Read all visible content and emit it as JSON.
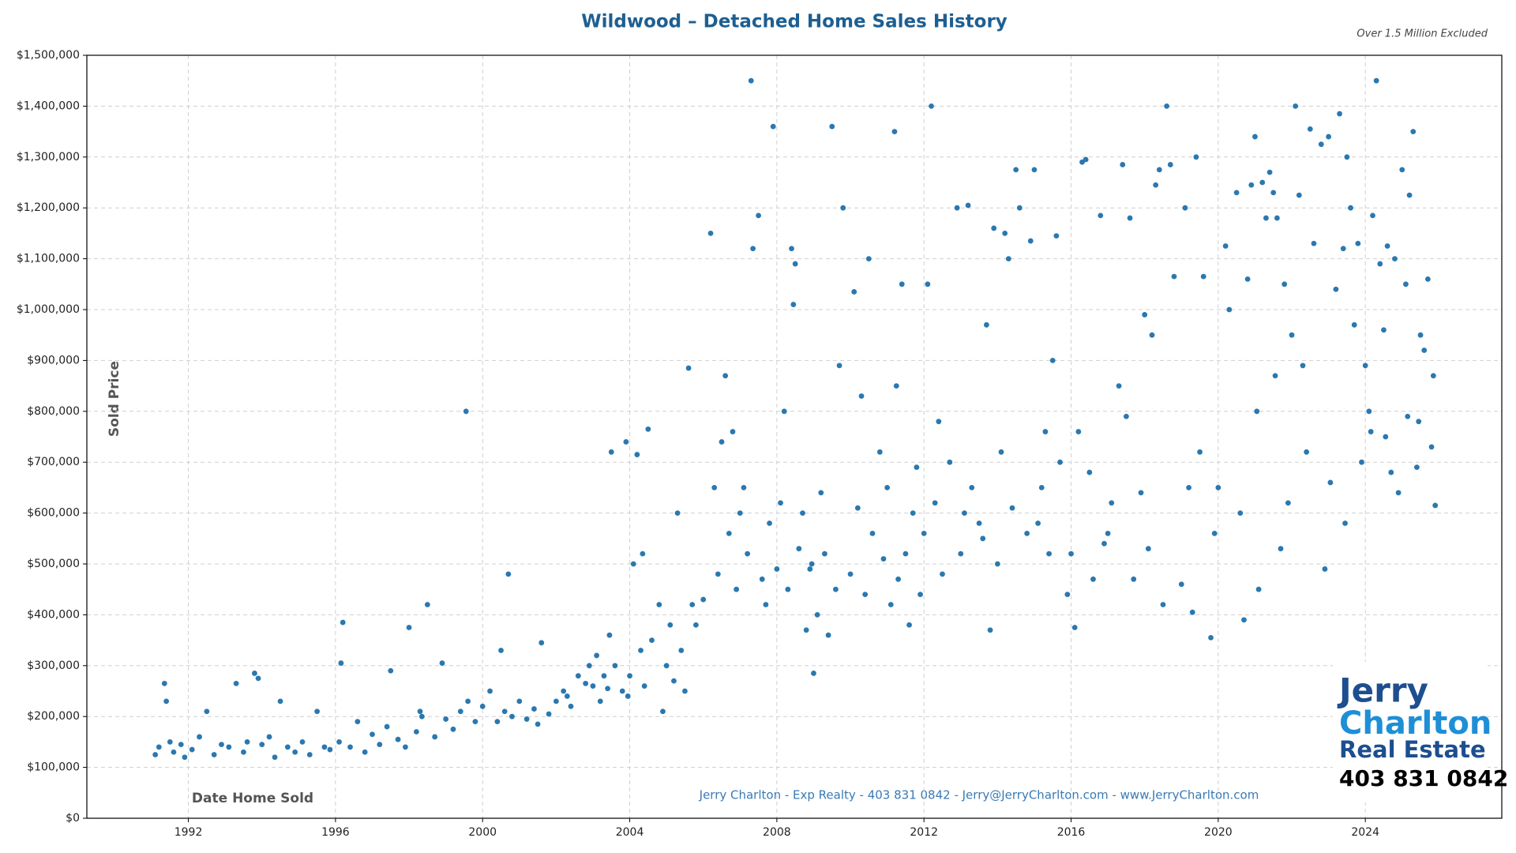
{
  "chart_data": {
    "type": "scatter",
    "title": "Wildwood – Detached Home Sales History",
    "subtitle": "Over 1.5 Million Excluded",
    "x_label": "Date Home Sold",
    "y_label": "Sold Price",
    "footer": "Jerry Charlton - Exp Realty - 403 831 0842 - Jerry@JerryCharlton.com - www.JerryCharlton.com",
    "color": "#2a78b0",
    "grid": true,
    "xlim": [
      1989.24,
      2027.71
    ],
    "xticks": [
      1992,
      1996,
      2000,
      2004,
      2008,
      2012,
      2016,
      2020,
      2024
    ],
    "ylim": [
      0,
      1500000
    ],
    "yticks": [
      {
        "value": 0,
        "label": "$0"
      },
      {
        "value": 100000,
        "label": "$100,000"
      },
      {
        "value": 200000,
        "label": "$200,000"
      },
      {
        "value": 300000,
        "label": "$300,000"
      },
      {
        "value": 400000,
        "label": "$400,000"
      },
      {
        "value": 500000,
        "label": "$500,000"
      },
      {
        "value": 600000,
        "label": "$600,000"
      },
      {
        "value": 700000,
        "label": "$700,000"
      },
      {
        "value": 800000,
        "label": "$800,000"
      },
      {
        "value": 900000,
        "label": "$900,000"
      },
      {
        "value": 1000000,
        "label": "$1,000,000"
      },
      {
        "value": 1100000,
        "label": "$1,100,000"
      },
      {
        "value": 1200000,
        "label": "$1,200,000"
      },
      {
        "value": 1300000,
        "label": "$1,300,000"
      },
      {
        "value": 1400000,
        "label": "$1,400,000"
      },
      {
        "value": 1500000,
        "label": "$1,500,000"
      }
    ],
    "x": [
      1991.1,
      1991.2,
      1991.35,
      1991.5,
      1991.6,
      1991.8,
      1991.9,
      1992.1,
      1992.3,
      1992.5,
      1992.7,
      1992.9,
      1993.1,
      1993.3,
      1993.5,
      1993.6,
      1993.8,
      1994.0,
      1994.2,
      1994.35,
      1994.5,
      1994.7,
      1994.9,
      1995.1,
      1995.3,
      1995.5,
      1995.7,
      1995.85,
      1991.4,
      1993.9,
      1996.1,
      1996.2,
      1996.4,
      1996.6,
      1996.8,
      1997.0,
      1997.2,
      1997.4,
      1997.5,
      1997.7,
      1997.9,
      1998.0,
      1998.2,
      1998.3,
      1998.5,
      1998.7,
      1998.9,
      1999.0,
      1999.2,
      1999.4,
      1999.6,
      1999.8,
      1996.15,
      1998.35,
      1999.55,
      2000.0,
      2000.2,
      2000.4,
      2000.6,
      2000.7,
      2000.8,
      2001.0,
      2001.2,
      2001.4,
      2001.6,
      2001.8,
      2002.0,
      2002.2,
      2002.4,
      2002.6,
      2002.8,
      2000.5,
      2001.5,
      2002.3,
      2002.9,
      2003.0,
      2003.1,
      2003.2,
      2003.3,
      2003.4,
      2003.5,
      2003.6,
      2003.8,
      2003.9,
      2004.0,
      2004.1,
      2004.2,
      2004.3,
      2004.4,
      2004.5,
      2004.6,
      2004.8,
      2004.9,
      2005.0,
      2005.1,
      2005.2,
      2005.3,
      2005.4,
      2005.5,
      2005.6,
      2005.7,
      2005.8,
      2003.45,
      2003.95,
      2004.35,
      2006.0,
      2006.2,
      2006.3,
      2006.4,
      2006.6,
      2006.7,
      2006.8,
      2006.9,
      2007.0,
      2007.2,
      2007.3,
      2007.35,
      2007.5,
      2007.6,
      2007.8,
      2007.9,
      2008.0,
      2008.1,
      2008.2,
      2008.3,
      2008.4,
      2008.45,
      2008.5,
      2008.6,
      2008.8,
      2008.9,
      2006.5,
      2007.1,
      2007.7,
      2008.7,
      2009.0,
      2009.1,
      2009.3,
      2009.4,
      2009.5,
      2009.6,
      2009.7,
      2009.8,
      2010.0,
      2010.1,
      2010.2,
      2010.4,
      2010.5,
      2010.6,
      2010.8,
      2011.0,
      2011.1,
      2011.2,
      2011.3,
      2011.4,
      2011.5,
      2011.6,
      2011.7,
      2011.8,
      2011.9,
      2008.95,
      2009.2,
      2010.3,
      2010.9,
      2011.25,
      2012.0,
      2012.1,
      2012.2,
      2012.3,
      2012.5,
      2012.7,
      2012.9,
      2013.0,
      2013.2,
      2013.3,
      2013.5,
      2013.7,
      2013.8,
      2013.9,
      2014.0,
      2014.2,
      2014.3,
      2014.4,
      2014.5,
      2014.6,
      2014.8,
      2014.9,
      2015.0,
      2015.2,
      2015.4,
      2015.5,
      2015.6,
      2015.7,
      2015.9,
      2012.4,
      2013.1,
      2013.6,
      2014.1,
      2015.1,
      2015.3,
      2016.0,
      2016.1,
      2016.3,
      2016.4,
      2016.5,
      2016.6,
      2016.8,
      2017.0,
      2017.1,
      2017.3,
      2017.4,
      2017.6,
      2017.7,
      2017.9,
      2018.0,
      2018.2,
      2018.3,
      2018.4,
      2018.5,
      2018.6,
      2018.7,
      2018.8,
      2019.0,
      2019.1,
      2019.3,
      2019.4,
      2019.6,
      2019.8,
      2019.9,
      2016.2,
      2016.9,
      2017.5,
      2018.1,
      2019.2,
      2019.5,
      2020.0,
      2020.2,
      2020.3,
      2020.5,
      2020.7,
      2020.8,
      2020.9,
      2021.0,
      2021.1,
      2021.2,
      2021.3,
      2021.4,
      2021.5,
      2021.6,
      2021.7,
      2021.8,
      2021.9,
      2022.0,
      2022.1,
      2022.2,
      2022.3,
      2022.5,
      2022.6,
      2022.8,
      2022.9,
      2023.0,
      2023.2,
      2023.3,
      2023.4,
      2023.5,
      2023.6,
      2023.7,
      2023.8,
      2023.9,
      2020.6,
      2021.05,
      2021.55,
      2022.4,
      2023.05,
      2023.45,
      2024.0,
      2024.1,
      2024.2,
      2024.3,
      2024.4,
      2024.5,
      2024.6,
      2024.7,
      2024.8,
      2024.9,
      2025.0,
      2025.1,
      2025.2,
      2025.3,
      2025.4,
      2025.5,
      2025.6,
      2025.7,
      2025.8,
      2025.9,
      2024.15,
      2024.55,
      2025.15,
      2025.45,
      2025.85
    ],
    "values": [
      125000,
      140000,
      265000,
      150000,
      130000,
      145000,
      120000,
      135000,
      160000,
      210000,
      125000,
      145000,
      140000,
      265000,
      130000,
      150000,
      285000,
      145000,
      160000,
      120000,
      230000,
      140000,
      130000,
      150000,
      125000,
      210000,
      140000,
      135000,
      230000,
      275000,
      150000,
      385000,
      140000,
      190000,
      130000,
      165000,
      145000,
      180000,
      290000,
      155000,
      140000,
      375000,
      170000,
      210000,
      420000,
      160000,
      305000,
      195000,
      175000,
      210000,
      230000,
      190000,
      305000,
      200000,
      800000,
      220000,
      250000,
      190000,
      210000,
      480000,
      200000,
      230000,
      195000,
      215000,
      345000,
      205000,
      230000,
      250000,
      220000,
      280000,
      265000,
      330000,
      185000,
      240000,
      300000,
      260000,
      320000,
      230000,
      280000,
      255000,
      720000,
      300000,
      250000,
      740000,
      280000,
      500000,
      715000,
      330000,
      260000,
      765000,
      350000,
      420000,
      210000,
      300000,
      380000,
      270000,
      600000,
      330000,
      250000,
      885000,
      420000,
      380000,
      360000,
      240000,
      520000,
      430000,
      1150000,
      650000,
      480000,
      870000,
      560000,
      760000,
      450000,
      600000,
      520000,
      1450000,
      1120000,
      1185000,
      470000,
      580000,
      1360000,
      490000,
      620000,
      800000,
      450000,
      1120000,
      1010000,
      1090000,
      530000,
      370000,
      490000,
      740000,
      650000,
      420000,
      600000,
      285000,
      400000,
      520000,
      360000,
      1360000,
      450000,
      890000,
      1200000,
      480000,
      1035000,
      610000,
      440000,
      1100000,
      560000,
      720000,
      650000,
      420000,
      1350000,
      470000,
      1050000,
      520000,
      380000,
      600000,
      690000,
      440000,
      500000,
      640000,
      830000,
      510000,
      850000,
      560000,
      1050000,
      1400000,
      620000,
      480000,
      700000,
      1200000,
      520000,
      1205000,
      650000,
      580000,
      970000,
      370000,
      1160000,
      500000,
      1150000,
      1100000,
      610000,
      1275000,
      1200000,
      560000,
      1135000,
      1275000,
      650000,
      520000,
      900000,
      1145000,
      700000,
      440000,
      780000,
      600000,
      550000,
      720000,
      580000,
      760000,
      520000,
      375000,
      1290000,
      1295000,
      680000,
      470000,
      1185000,
      560000,
      620000,
      850000,
      1285000,
      1180000,
      470000,
      640000,
      990000,
      950000,
      1245000,
      1275000,
      420000,
      1400000,
      1285000,
      1065000,
      460000,
      1200000,
      405000,
      1300000,
      1065000,
      355000,
      560000,
      760000,
      540000,
      790000,
      530000,
      650000,
      720000,
      650000,
      1125000,
      1000000,
      1230000,
      390000,
      1060000,
      1245000,
      1340000,
      450000,
      1250000,
      1180000,
      1270000,
      1230000,
      1180000,
      530000,
      1050000,
      620000,
      950000,
      1400000,
      1225000,
      890000,
      1355000,
      1130000,
      1325000,
      490000,
      1340000,
      1040000,
      1385000,
      1120000,
      1300000,
      1200000,
      970000,
      1130000,
      700000,
      600000,
      800000,
      870000,
      720000,
      660000,
      580000,
      890000,
      800000,
      1185000,
      1450000,
      1090000,
      960000,
      1125000,
      680000,
      1100000,
      640000,
      1275000,
      1050000,
      1225000,
      1350000,
      690000,
      950000,
      920000,
      1060000,
      730000,
      615000,
      760000,
      750000,
      790000,
      780000,
      870000
    ]
  },
  "branding": {
    "line1": "Jerry",
    "line2": "Charlton",
    "line3": "Real Estate",
    "phone": "403 831 0842"
  }
}
